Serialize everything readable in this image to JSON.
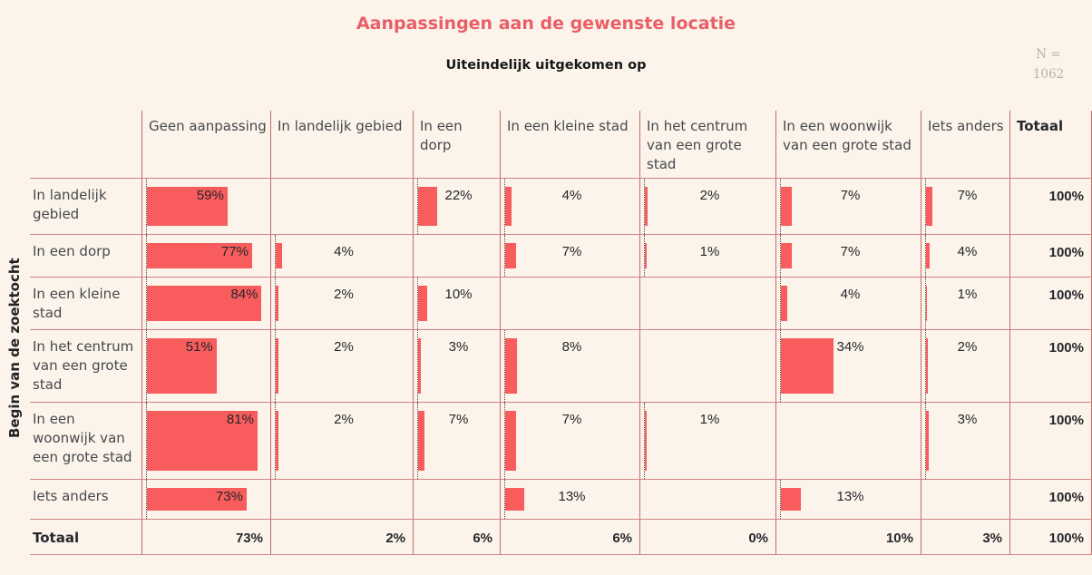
{
  "header": {
    "title": "Aanpassingen aan de gewenste locatie",
    "subtitle": "Uiteindelijk uitgekomen op",
    "sample_label": "N =",
    "sample_value": "1062"
  },
  "chart_data": {
    "type": "table",
    "title": "Aanpassingen aan de gewenste locatie",
    "column_axis_label": "Uiteindelijk uitgekomen op",
    "row_axis_label": "Begin van de zoektocht",
    "n": 1062,
    "unit": "%",
    "columns": [
      "Geen aanpassing",
      "In landelijk gebied",
      "In een dorp",
      "In een kleine stad",
      "In het centrum\nvan een grote stad",
      "In een woonwijk\nvan een grote stad",
      "Iets anders",
      "Totaal"
    ],
    "rows": [
      {
        "label": "In landelijk\ngebied",
        "values": [
          59,
          null,
          22,
          4,
          2,
          7,
          7
        ],
        "total": 100
      },
      {
        "label": "In een dorp",
        "values": [
          77,
          4,
          null,
          7,
          1,
          7,
          4
        ],
        "total": 100
      },
      {
        "label": "In een kleine\nstad",
        "values": [
          84,
          2,
          10,
          null,
          null,
          4,
          1
        ],
        "total": 100
      },
      {
        "label": "In het centrum\nvan een grote\nstad",
        "values": [
          51,
          2,
          3,
          8,
          null,
          34,
          2
        ],
        "total": 100
      },
      {
        "label": "In een\nwoonwijk van\neen grote stad",
        "values": [
          81,
          2,
          7,
          7,
          1,
          null,
          3
        ],
        "total": 100
      },
      {
        "label": "Iets anders",
        "values": [
          73,
          null,
          null,
          13,
          null,
          13,
          null
        ],
        "total": 100
      }
    ],
    "totals_row": {
      "label": "Totaal",
      "values": [
        73,
        2,
        6,
        6,
        0,
        10,
        3
      ],
      "total": 100
    },
    "bar_scale_max": 87,
    "inside_label_threshold": 40,
    "colors": {
      "background": "#fcf4ea",
      "bar": "#f95c5c",
      "grid_vertical": "#c46a6a",
      "grid_horizontal": "#d08484",
      "title": "#e95f68",
      "text": "#45484d",
      "bold_text": "#25272c",
      "sample": "#b6b1ac"
    }
  }
}
